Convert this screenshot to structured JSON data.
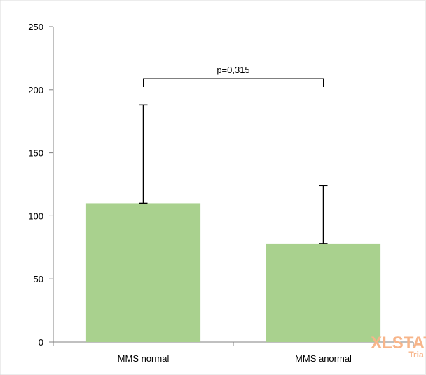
{
  "chart_data": {
    "type": "bar",
    "categories": [
      "MMS normal",
      "MMS anormal"
    ],
    "values": [
      110,
      78
    ],
    "error_upper": [
      188,
      124
    ],
    "ylim": [
      0,
      250
    ],
    "yticks": [
      "0",
      "50",
      "100",
      "150",
      "200",
      "250"
    ],
    "ytick_values": [
      0,
      50,
      100,
      150,
      200,
      250
    ],
    "title": "",
    "xlabel": "",
    "ylabel": "",
    "grid": false,
    "annotation": "p=0,315",
    "bar_color": "#a9d18e"
  },
  "watermark": {
    "main": "XLSTAT",
    "sub": "Tria"
  }
}
